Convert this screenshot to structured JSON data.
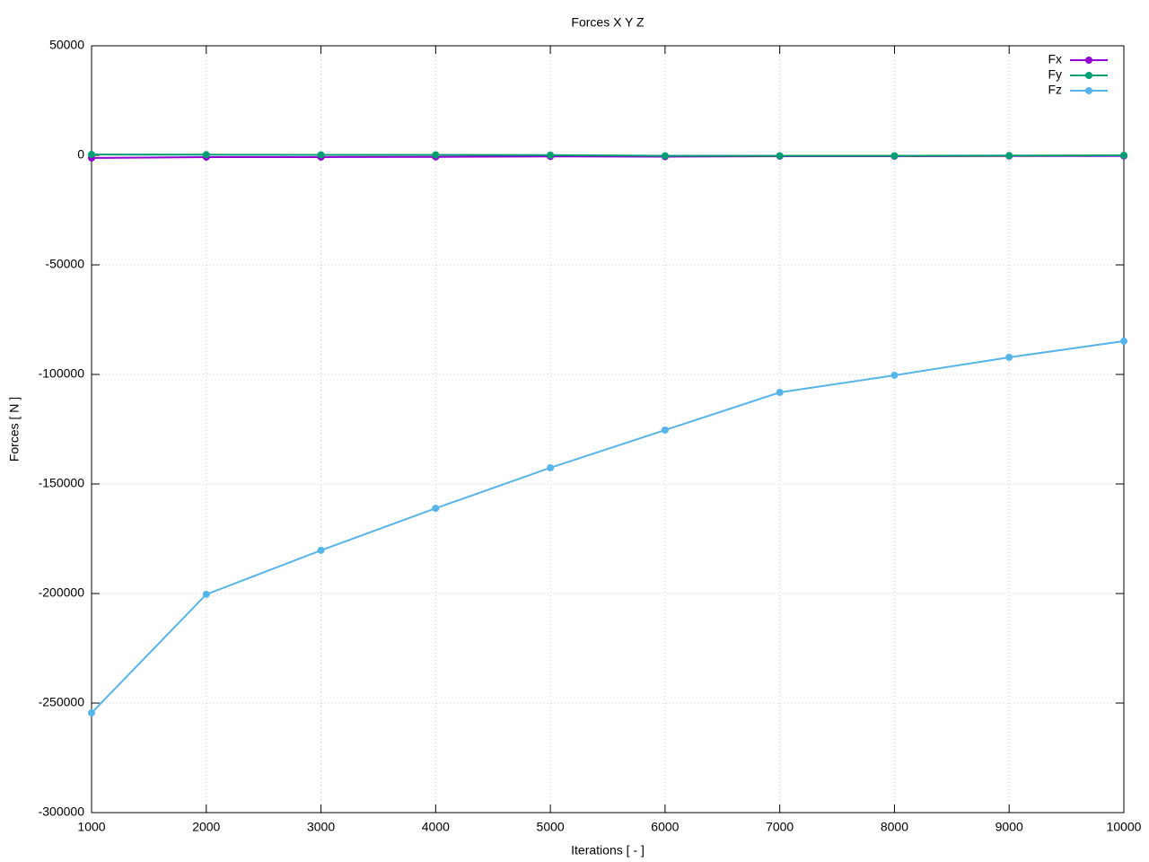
{
  "chart_data": {
    "type": "line",
    "title": "Forces X Y Z",
    "x_label": "Iterations [ - ]",
    "y_label": "Forces [ N ]",
    "x": [
      1000,
      2000,
      3000,
      4000,
      5000,
      6000,
      7000,
      8000,
      9000,
      10000
    ],
    "series": [
      {
        "name": "Fx",
        "color": "#9400d3",
        "values": [
          -1200,
          -800,
          -800,
          -700,
          -500,
          -600,
          -400,
          -400,
          -300,
          -300
        ]
      },
      {
        "name": "Fy",
        "color": "#009e73",
        "values": [
          400,
          300,
          200,
          200,
          100,
          -200,
          -200,
          -200,
          -100,
          0
        ]
      },
      {
        "name": "Fz",
        "color": "#56b4e9",
        "values": [
          -254500,
          -200400,
          -180300,
          -161100,
          -142600,
          -125400,
          -108200,
          -100400,
          -92200,
          -84800
        ]
      }
    ],
    "xlim": [
      1000,
      10000
    ],
    "xticks": [
      1000,
      2000,
      3000,
      4000,
      5000,
      6000,
      7000,
      8000,
      9000,
      10000
    ],
    "ylim": [
      -300000,
      50000
    ],
    "yticks": [
      -300000,
      -250000,
      -200000,
      -150000,
      -100000,
      -50000,
      0,
      50000
    ],
    "grid": true,
    "legend": "top-right"
  }
}
